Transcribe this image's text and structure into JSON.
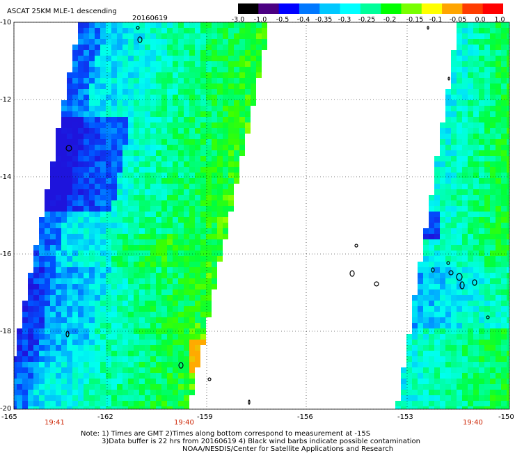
{
  "title": "ASCAT 25KM MLE-1 descending",
  "date": "20160619",
  "colorbar": {
    "labels": [
      "-3.0",
      "-1.0",
      "-0.5",
      "-0.4",
      "-0.35",
      "-0.3",
      "-0.25",
      "-0.2",
      "-0.15",
      "-0.1",
      "-0.05",
      "0.0",
      "1.0"
    ],
    "colors": [
      "#000000",
      "#4b0082",
      "#0000ff",
      "#0078ff",
      "#00c8ff",
      "#00ffff",
      "#00ff9a",
      "#00ff00",
      "#78ff00",
      "#ffff00",
      "#ffa500",
      "#ff3c00",
      "#ff0000"
    ]
  },
  "axes": {
    "lon_ticks": [
      "-165",
      "-162",
      "-159",
      "-156",
      "-153",
      "-150"
    ],
    "lat_ticks": [
      "-10",
      "-12",
      "-14",
      "-16",
      "-18",
      "-20"
    ],
    "time_labels": [
      "19:41",
      "19:40",
      "19:40"
    ]
  },
  "notes": {
    "line1": "Note: 1) Times are GMT 2)Times along bottom correspond to measurement at -15S",
    "line2": "3)Data buffer is 22 hrs from 20160619 4) Black wind barbs indicate possible contamination",
    "line3": "NOAA/NESDIS/Center for Satellite Applications and Research"
  }
}
